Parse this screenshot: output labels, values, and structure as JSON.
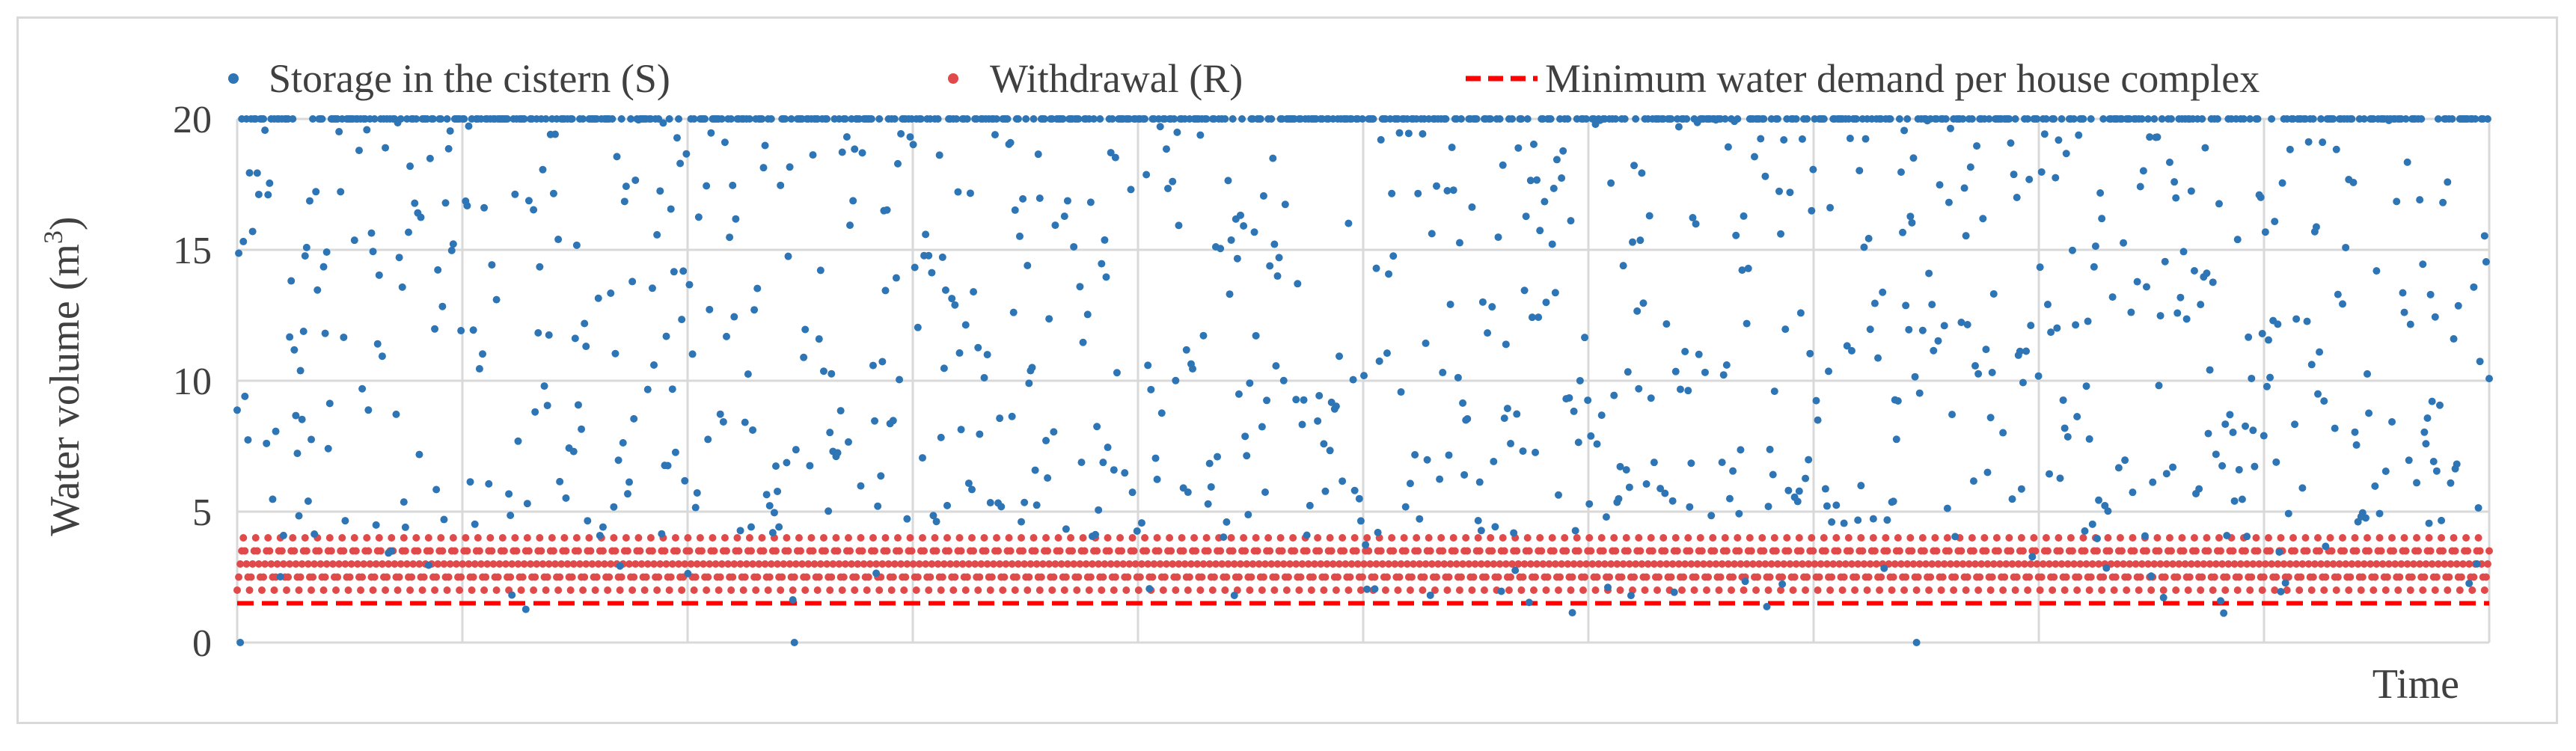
{
  "chart_data": {
    "type": "scatter",
    "title": "",
    "xlabel": "Time",
    "ylabel": "Water volume (m",
    "ylabel_sup": "3",
    "ylabel_close": ")",
    "ylim": [
      0,
      20
    ],
    "yticks": [
      0,
      5,
      10,
      15,
      20
    ],
    "grid": {
      "horizontal": true,
      "vertical": true,
      "vertical_lines": 10
    },
    "legend": {
      "placement": "top",
      "entries": [
        {
          "name": "Storage in the cistern (S)",
          "marker": "dot",
          "color": "#2e75b6"
        },
        {
          "name": "Withdrawal (R)",
          "marker": "dot",
          "color": "#e04a4a"
        },
        {
          "name": "Minimum water demand per house complex",
          "marker": "dashed-line",
          "color": "#ff0000"
        }
      ]
    },
    "series": [
      {
        "name": "Storage in the cistern (S)",
        "color": "#2e75b6",
        "n_points": 1460,
        "max_value": 20,
        "min_value": 0,
        "share_at_max": 0.42,
        "zero_points": [
          2,
          361,
          1088
        ]
      },
      {
        "name": "Withdrawal (R)",
        "color": "#e04a4a",
        "n_points": 1460,
        "cycle_length": 8,
        "cycle_values": [
          2.0,
          2.5,
          3.0,
          3.5,
          4.0,
          3.5,
          3.0,
          2.5
        ]
      },
      {
        "name": "Minimum water demand per house complex",
        "color": "#ff0000",
        "line_style": "dashed",
        "value": 1.5
      }
    ]
  }
}
